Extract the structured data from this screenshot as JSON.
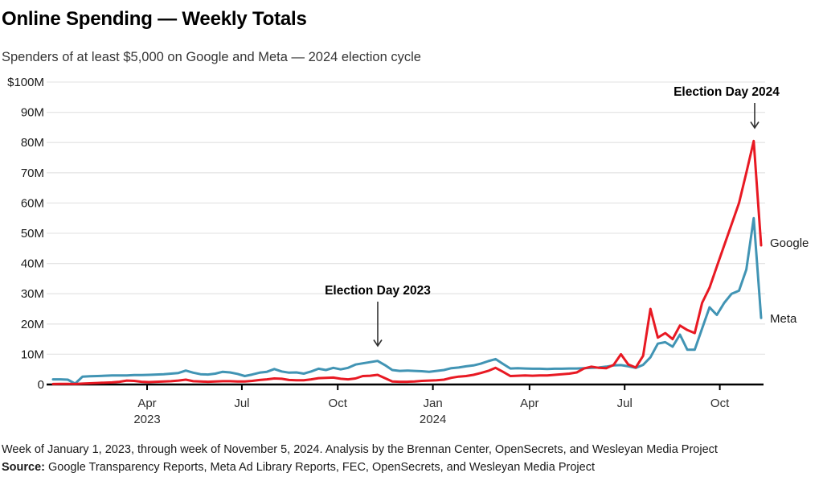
{
  "chart_data": {
    "type": "line",
    "title": "Online Spending — Weekly Totals",
    "subtitle": "Spenders of at least $5,000 on Google and Meta — 2024 election cycle",
    "x_unit": "week",
    "grid": "horizontal",
    "legend_position": "line-end-labels",
    "ylim": [
      0,
      100
    ],
    "y_axis": {
      "ticks": [
        {
          "value": 100,
          "label": "$100M"
        },
        {
          "value": 90,
          "label": "90M"
        },
        {
          "value": 80,
          "label": "80M"
        },
        {
          "value": 70,
          "label": "70M"
        },
        {
          "value": 60,
          "label": "60M"
        },
        {
          "value": 50,
          "label": "50M"
        },
        {
          "value": 40,
          "label": "40M"
        },
        {
          "value": 30,
          "label": "30M"
        },
        {
          "value": 20,
          "label": "20M"
        },
        {
          "value": 10,
          "label": "10M"
        },
        {
          "value": 0,
          "label": "0"
        }
      ]
    },
    "x_axis": {
      "ticks": [
        {
          "label": "Apr",
          "year": "2023",
          "week": 12.75
        },
        {
          "label": "Jul",
          "week": 25.6
        },
        {
          "label": "Oct",
          "week": 38.6
        },
        {
          "label": "Jan",
          "year": "2024",
          "week": 51.5
        },
        {
          "label": "Apr",
          "week": 64.6
        },
        {
          "label": "Jul",
          "week": 77.5
        },
        {
          "label": "Oct",
          "week": 90.4
        }
      ]
    },
    "series": [
      {
        "name": "Meta",
        "color": "#4194b4",
        "values": [
          1.7,
          1.7,
          1.6,
          0.3,
          2.6,
          2.7,
          2.8,
          2.9,
          3.0,
          3.0,
          3.0,
          3.1,
          3.1,
          3.2,
          3.3,
          3.4,
          3.6,
          3.8,
          4.6,
          3.9,
          3.4,
          3.3,
          3.6,
          4.2,
          4.0,
          3.5,
          2.8,
          3.3,
          3.9,
          4.2,
          5.1,
          4.3,
          3.9,
          4.0,
          3.6,
          4.3,
          5.2,
          4.8,
          5.5,
          5.0,
          5.5,
          6.6,
          7.0,
          7.4,
          7.8,
          6.4,
          4.8,
          4.5,
          4.6,
          4.5,
          4.4,
          4.2,
          4.5,
          4.8,
          5.4,
          5.6,
          6.0,
          6.3,
          6.9,
          7.7,
          8.4,
          6.8,
          5.3,
          5.4,
          5.3,
          5.2,
          5.2,
          5.1,
          5.2,
          5.2,
          5.3,
          5.3,
          5.4,
          5.5,
          5.6,
          5.9,
          6.3,
          6.4,
          6.0,
          5.5,
          6.5,
          9.0,
          13.5,
          14.0,
          12.5,
          16.5,
          11.5,
          11.5,
          18.5,
          25.5,
          23.0,
          27.0,
          30.0,
          31.0,
          38.0,
          55.0,
          22.0
        ]
      },
      {
        "name": "Google",
        "color": "#e81923",
        "values": [
          0.15,
          0.2,
          0.2,
          0.15,
          0.3,
          0.4,
          0.5,
          0.6,
          0.7,
          0.9,
          1.3,
          1.2,
          0.9,
          0.8,
          0.9,
          1.0,
          1.1,
          1.3,
          1.6,
          1.1,
          1.0,
          0.9,
          1.0,
          1.1,
          1.1,
          1.0,
          1.0,
          1.2,
          1.5,
          1.7,
          2.0,
          1.9,
          1.5,
          1.4,
          1.4,
          1.7,
          2.1,
          2.2,
          2.3,
          1.9,
          1.7,
          2.0,
          2.8,
          2.9,
          3.2,
          2.1,
          1.0,
          0.9,
          0.9,
          1.0,
          1.2,
          1.3,
          1.4,
          1.6,
          2.2,
          2.6,
          2.8,
          3.2,
          3.8,
          4.5,
          5.5,
          4.2,
          2.8,
          2.9,
          3.0,
          2.9,
          3.0,
          3.0,
          3.2,
          3.4,
          3.6,
          4.0,
          5.3,
          5.9,
          5.5,
          5.4,
          6.5,
          10.0,
          6.6,
          5.6,
          9.5,
          25.0,
          15.5,
          17.0,
          15.0,
          19.5,
          18.0,
          17.0,
          27.0,
          32.0,
          39.0,
          46.0,
          53.0,
          60.0,
          70.0,
          80.5,
          46.0
        ]
      }
    ],
    "annotations": [
      {
        "label": "Election Day 2023",
        "week": 44,
        "series": "Meta",
        "value": 7.8
      },
      {
        "label": "Election Day 2024",
        "week": 95,
        "series": "Google",
        "value": 80.5
      }
    ]
  },
  "footer": {
    "note": "Week of January 1, 2023, through week of November 5, 2024. Analysis by the Brennan Center, OpenSecrets, and Wesleyan Media Project",
    "source_label": "Source:",
    "source_text": " Google Transparency Reports, Meta Ad Library Reports, FEC, OpenSecrets, and Wesleyan Media Project"
  }
}
